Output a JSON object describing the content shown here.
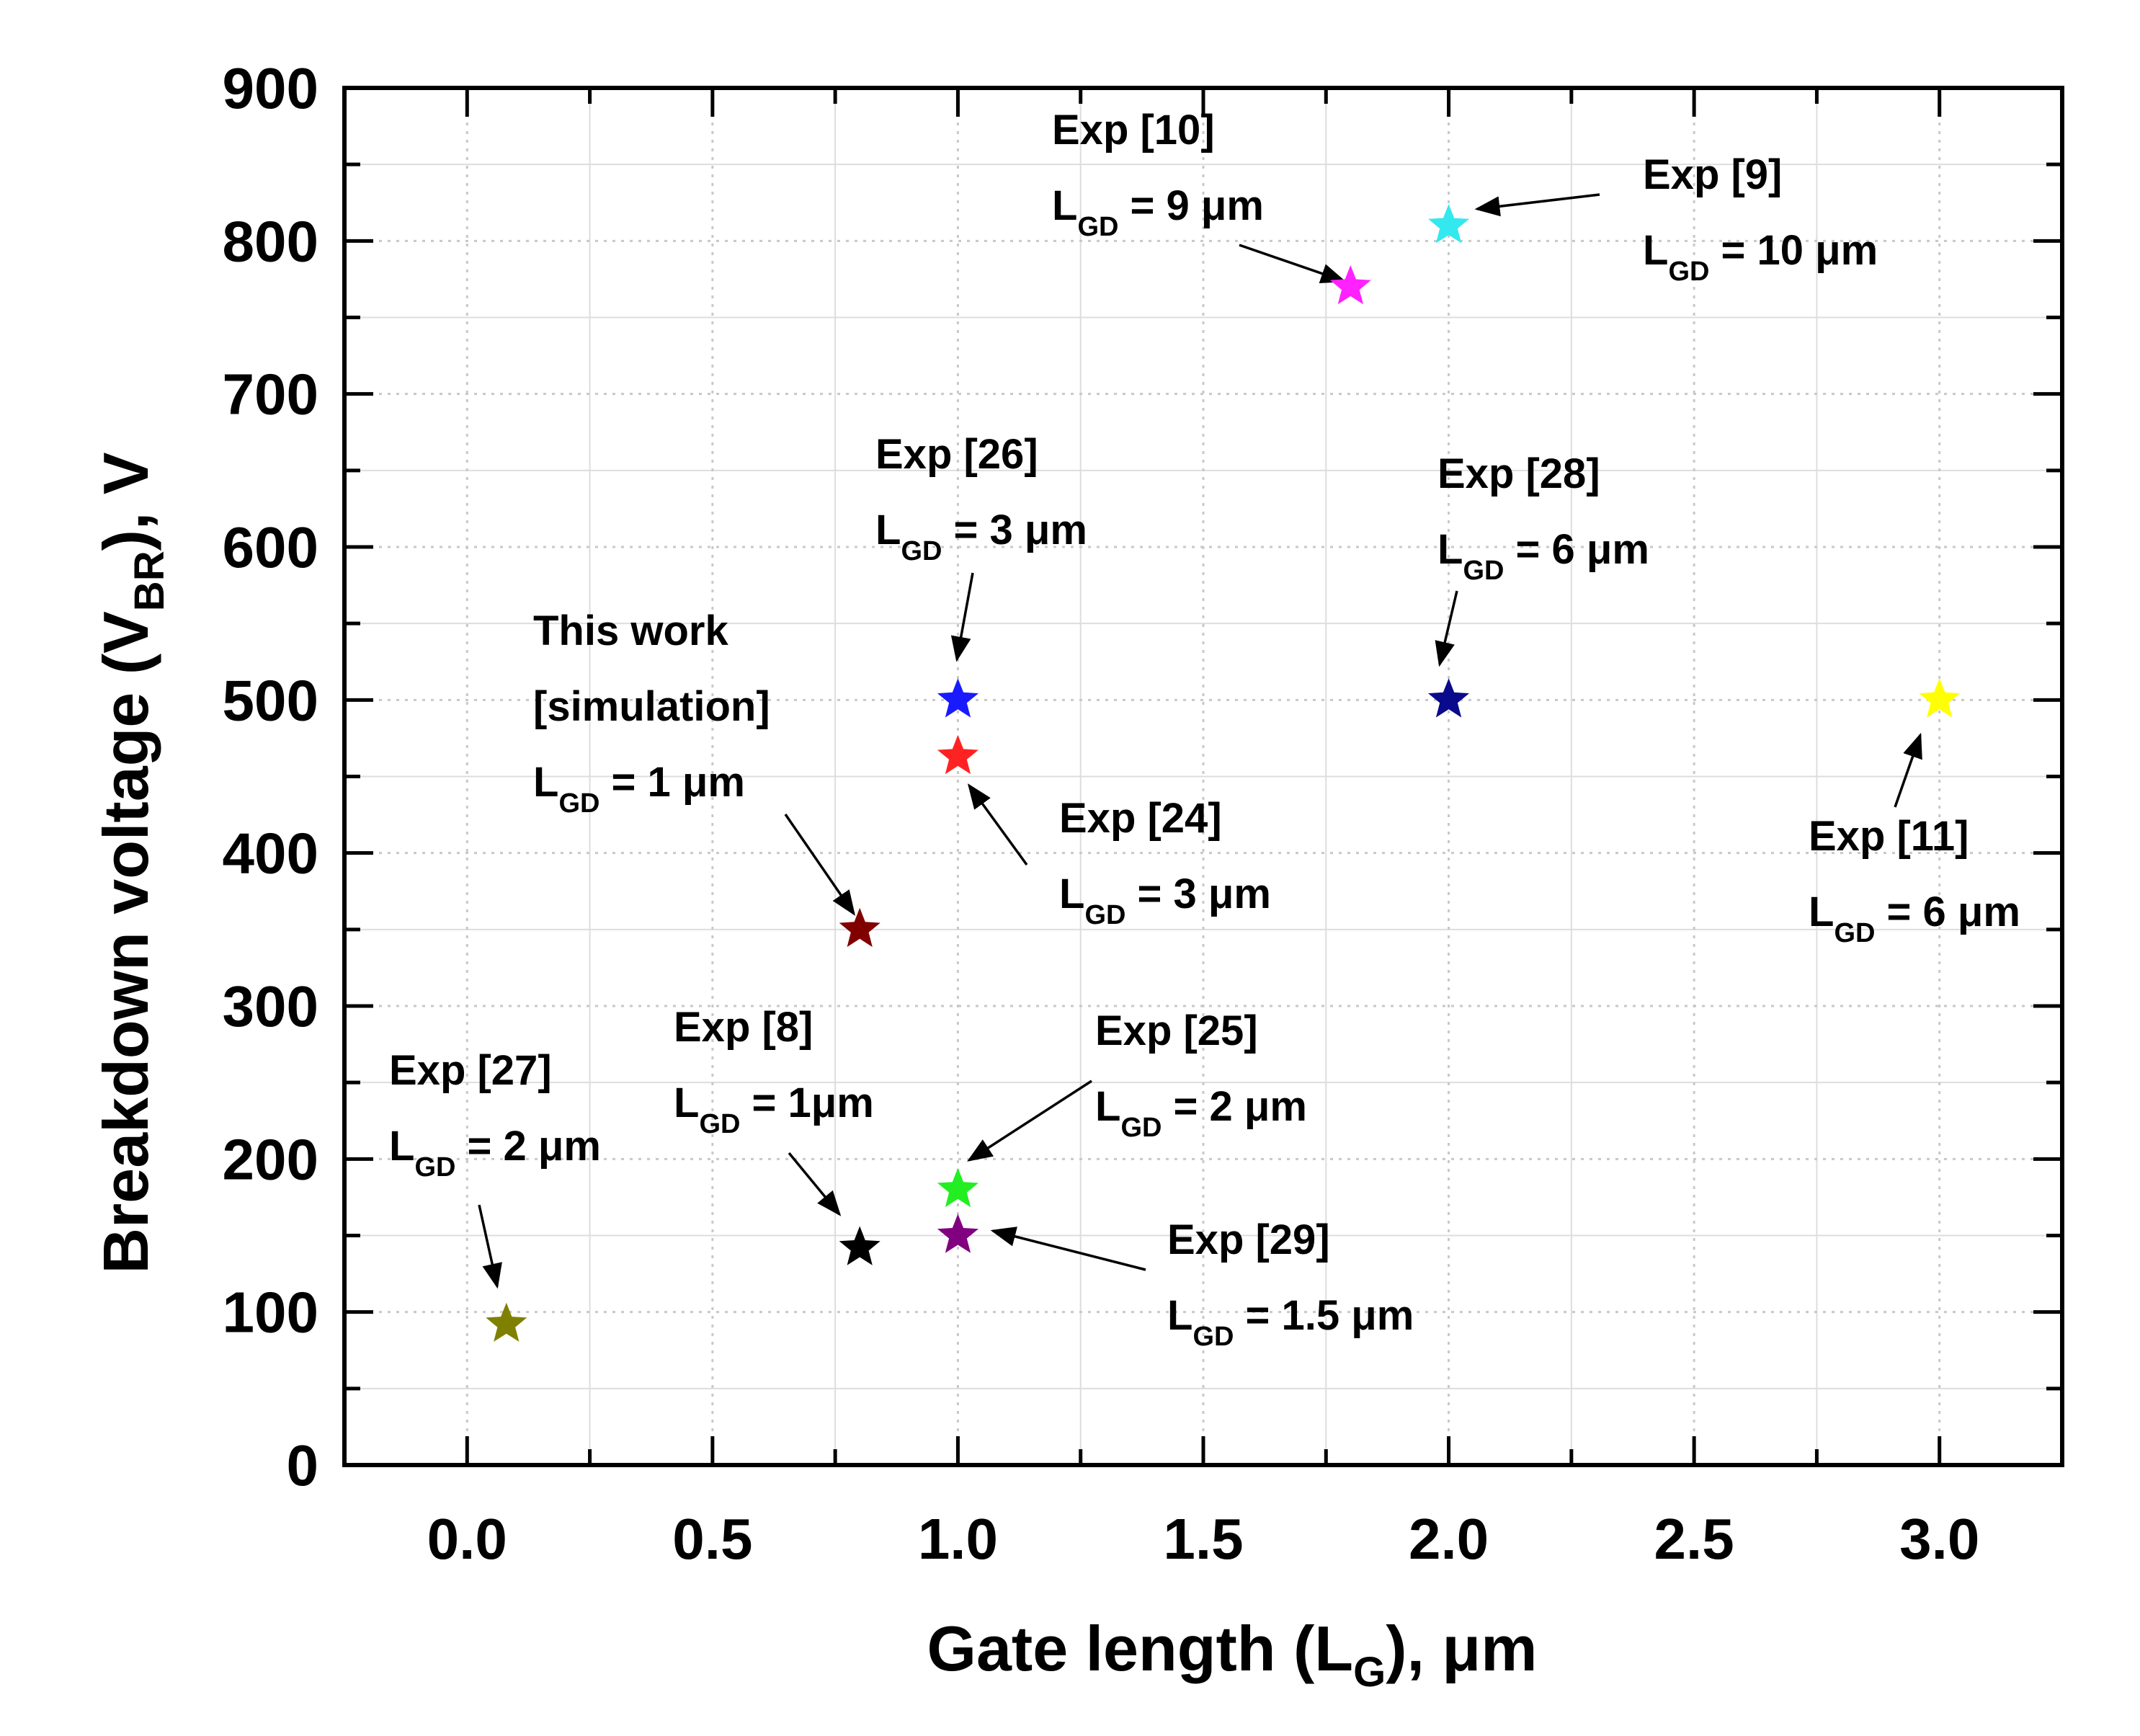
{
  "chart_data": {
    "type": "scatter",
    "title": "",
    "xlabel": {
      "main": "Gate length (L",
      "sub": "G",
      "tail": "), μm"
    },
    "ylabel": {
      "main": "Breakdown voltage (V",
      "sub": "BR",
      "tail": "), V"
    },
    "xlim": [
      -0.25,
      3.25
    ],
    "ylim": [
      0,
      900
    ],
    "xticks": [
      "0.0",
      "0.5",
      "1.0",
      "1.5",
      "2.0",
      "2.5",
      "3.0"
    ],
    "yticks": [
      "0",
      "100",
      "200",
      "300",
      "400",
      "500",
      "600",
      "700",
      "800",
      "900"
    ],
    "grid": true,
    "points": [
      {
        "id": "this-work",
        "x": 0.8,
        "y": 350,
        "color": "#800000",
        "label": [
          "This work",
          "[simulation]"
        ],
        "lgd_value": " = 1 μm",
        "label_color": "#ff0000"
      },
      {
        "id": "exp-8",
        "x": 0.8,
        "y": 142,
        "color": "#000000",
        "label": [
          "Exp [8]"
        ],
        "lgd_value": " = 1μm",
        "label_color": "#000000"
      },
      {
        "id": "exp-9",
        "x": 2.0,
        "y": 810,
        "color": "#33e8ee",
        "label": [
          "Exp [9]"
        ],
        "lgd_value": " = 10 μm",
        "label_color": "#000000"
      },
      {
        "id": "exp-10",
        "x": 1.8,
        "y": 770,
        "color": "#ff22ff",
        "label": [
          "Exp [10]"
        ],
        "lgd_value": " = 9 μm",
        "label_color": "#000000"
      },
      {
        "id": "exp-11",
        "x": 3.0,
        "y": 500,
        "color": "#ffff00",
        "label": [
          "Exp [11]"
        ],
        "lgd_value": " = 6 μm",
        "label_color": "#000000"
      },
      {
        "id": "exp-24",
        "x": 1.0,
        "y": 463,
        "color": "#ff2222",
        "label": [
          "Exp [24]"
        ],
        "lgd_value": " = 3 μm",
        "label_color": "#000000"
      },
      {
        "id": "exp-25",
        "x": 1.0,
        "y": 180,
        "color": "#22ee22",
        "label": [
          "Exp [25]"
        ],
        "lgd_value": " = 2 μm",
        "label_color": "#000000"
      },
      {
        "id": "exp-26",
        "x": 1.0,
        "y": 500,
        "color": "#1a1aff",
        "label": [
          "Exp [26]"
        ],
        "lgd_value": " = 3 μm",
        "label_color": "#000000"
      },
      {
        "id": "exp-27",
        "x": 0.08,
        "y": 92,
        "color": "#808000",
        "label": [
          "Exp [27]"
        ],
        "lgd_value": " = 2 μm",
        "label_color": "#000000"
      },
      {
        "id": "exp-28",
        "x": 2.0,
        "y": 500,
        "color": "#0a0a8c",
        "label": [
          "Exp [28]"
        ],
        "lgd_value": " = 6 μm",
        "label_color": "#000000"
      },
      {
        "id": "exp-29",
        "x": 1.0,
        "y": 150,
        "color": "#800080",
        "label": [
          "Exp [29]"
        ],
        "lgd_value": " = 1.5 μm",
        "label_color": "#000000"
      }
    ],
    "lgd_symbol": {
      "main": "L",
      "sub": "GD"
    }
  }
}
